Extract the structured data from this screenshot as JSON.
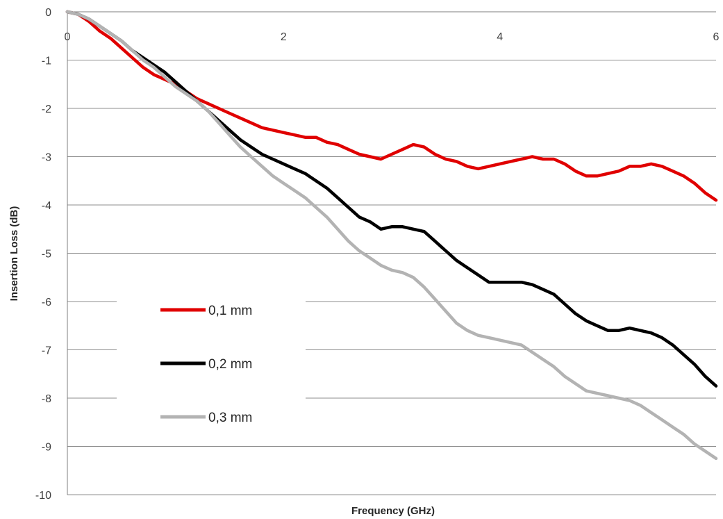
{
  "chart_data": {
    "type": "line",
    "title": "",
    "xlabel": "Frequency (GHz)",
    "ylabel": "Insertion Loss (dB)",
    "xlim": [
      0,
      6
    ],
    "ylim": [
      -10,
      0
    ],
    "x_ticks": [
      0,
      2,
      4,
      6
    ],
    "y_ticks": [
      0,
      -1,
      -2,
      -3,
      -4,
      -5,
      -6,
      -7,
      -8,
      -9,
      -10
    ],
    "grid": "horizontal",
    "legend_position": "lower-left inside plot",
    "series": [
      {
        "name": "0,1 mm",
        "color": "#e00000",
        "points": [
          [
            0.0,
            0.0
          ],
          [
            0.1,
            -0.05
          ],
          [
            0.2,
            -0.2
          ],
          [
            0.3,
            -0.4
          ],
          [
            0.4,
            -0.55
          ],
          [
            0.5,
            -0.75
          ],
          [
            0.6,
            -0.95
          ],
          [
            0.7,
            -1.15
          ],
          [
            0.8,
            -1.3
          ],
          [
            0.9,
            -1.4
          ],
          [
            1.0,
            -1.5
          ],
          [
            1.1,
            -1.65
          ],
          [
            1.2,
            -1.8
          ],
          [
            1.3,
            -1.9
          ],
          [
            1.4,
            -2.0
          ],
          [
            1.5,
            -2.1
          ],
          [
            1.6,
            -2.2
          ],
          [
            1.7,
            -2.3
          ],
          [
            1.8,
            -2.4
          ],
          [
            1.9,
            -2.45
          ],
          [
            2.0,
            -2.5
          ],
          [
            2.1,
            -2.55
          ],
          [
            2.2,
            -2.6
          ],
          [
            2.3,
            -2.6
          ],
          [
            2.4,
            -2.7
          ],
          [
            2.5,
            -2.75
          ],
          [
            2.6,
            -2.85
          ],
          [
            2.7,
            -2.95
          ],
          [
            2.8,
            -3.0
          ],
          [
            2.9,
            -3.05
          ],
          [
            3.0,
            -2.95
          ],
          [
            3.1,
            -2.85
          ],
          [
            3.2,
            -2.75
          ],
          [
            3.3,
            -2.8
          ],
          [
            3.4,
            -2.95
          ],
          [
            3.5,
            -3.05
          ],
          [
            3.6,
            -3.1
          ],
          [
            3.7,
            -3.2
          ],
          [
            3.8,
            -3.25
          ],
          [
            3.9,
            -3.2
          ],
          [
            4.0,
            -3.15
          ],
          [
            4.1,
            -3.1
          ],
          [
            4.2,
            -3.05
          ],
          [
            4.3,
            -3.0
          ],
          [
            4.4,
            -3.05
          ],
          [
            4.5,
            -3.05
          ],
          [
            4.6,
            -3.15
          ],
          [
            4.7,
            -3.3
          ],
          [
            4.8,
            -3.4
          ],
          [
            4.9,
            -3.4
          ],
          [
            5.0,
            -3.35
          ],
          [
            5.1,
            -3.3
          ],
          [
            5.2,
            -3.2
          ],
          [
            5.3,
            -3.2
          ],
          [
            5.4,
            -3.15
          ],
          [
            5.5,
            -3.2
          ],
          [
            5.6,
            -3.3
          ],
          [
            5.7,
            -3.4
          ],
          [
            5.8,
            -3.55
          ],
          [
            5.9,
            -3.75
          ],
          [
            6.0,
            -3.9
          ]
        ]
      },
      {
        "name": "0,2 mm",
        "color": "#000000",
        "points": [
          [
            0.0,
            0.0
          ],
          [
            0.1,
            -0.05
          ],
          [
            0.2,
            -0.15
          ],
          [
            0.3,
            -0.3
          ],
          [
            0.4,
            -0.45
          ],
          [
            0.5,
            -0.6
          ],
          [
            0.6,
            -0.8
          ],
          [
            0.7,
            -0.95
          ],
          [
            0.8,
            -1.1
          ],
          [
            0.9,
            -1.25
          ],
          [
            1.0,
            -1.45
          ],
          [
            1.1,
            -1.65
          ],
          [
            1.2,
            -1.85
          ],
          [
            1.3,
            -2.05
          ],
          [
            1.4,
            -2.25
          ],
          [
            1.5,
            -2.45
          ],
          [
            1.6,
            -2.65
          ],
          [
            1.7,
            -2.8
          ],
          [
            1.8,
            -2.95
          ],
          [
            1.9,
            -3.05
          ],
          [
            2.0,
            -3.15
          ],
          [
            2.1,
            -3.25
          ],
          [
            2.2,
            -3.35
          ],
          [
            2.3,
            -3.5
          ],
          [
            2.4,
            -3.65
          ],
          [
            2.5,
            -3.85
          ],
          [
            2.6,
            -4.05
          ],
          [
            2.7,
            -4.25
          ],
          [
            2.8,
            -4.35
          ],
          [
            2.9,
            -4.5
          ],
          [
            3.0,
            -4.45
          ],
          [
            3.1,
            -4.45
          ],
          [
            3.2,
            -4.5
          ],
          [
            3.3,
            -4.55
          ],
          [
            3.4,
            -4.75
          ],
          [
            3.5,
            -4.95
          ],
          [
            3.6,
            -5.15
          ],
          [
            3.7,
            -5.3
          ],
          [
            3.8,
            -5.45
          ],
          [
            3.9,
            -5.6
          ],
          [
            4.0,
            -5.6
          ],
          [
            4.1,
            -5.6
          ],
          [
            4.2,
            -5.6
          ],
          [
            4.3,
            -5.65
          ],
          [
            4.4,
            -5.75
          ],
          [
            4.5,
            -5.85
          ],
          [
            4.6,
            -6.05
          ],
          [
            4.7,
            -6.25
          ],
          [
            4.8,
            -6.4
          ],
          [
            4.9,
            -6.5
          ],
          [
            5.0,
            -6.6
          ],
          [
            5.1,
            -6.6
          ],
          [
            5.2,
            -6.55
          ],
          [
            5.3,
            -6.6
          ],
          [
            5.4,
            -6.65
          ],
          [
            5.5,
            -6.75
          ],
          [
            5.6,
            -6.9
          ],
          [
            5.7,
            -7.1
          ],
          [
            5.8,
            -7.3
          ],
          [
            5.9,
            -7.55
          ],
          [
            6.0,
            -7.75
          ]
        ]
      },
      {
        "name": "0,3 mm",
        "color": "#b3b3b3",
        "points": [
          [
            0.0,
            0.0
          ],
          [
            0.1,
            -0.05
          ],
          [
            0.2,
            -0.15
          ],
          [
            0.3,
            -0.3
          ],
          [
            0.4,
            -0.45
          ],
          [
            0.5,
            -0.6
          ],
          [
            0.6,
            -0.8
          ],
          [
            0.7,
            -1.0
          ],
          [
            0.8,
            -1.15
          ],
          [
            0.9,
            -1.35
          ],
          [
            1.0,
            -1.55
          ],
          [
            1.1,
            -1.7
          ],
          [
            1.2,
            -1.85
          ],
          [
            1.3,
            -2.05
          ],
          [
            1.4,
            -2.3
          ],
          [
            1.5,
            -2.55
          ],
          [
            1.6,
            -2.8
          ],
          [
            1.7,
            -3.0
          ],
          [
            1.8,
            -3.2
          ],
          [
            1.9,
            -3.4
          ],
          [
            2.0,
            -3.55
          ],
          [
            2.1,
            -3.7
          ],
          [
            2.2,
            -3.85
          ],
          [
            2.3,
            -4.05
          ],
          [
            2.4,
            -4.25
          ],
          [
            2.5,
            -4.5
          ],
          [
            2.6,
            -4.75
          ],
          [
            2.7,
            -4.95
          ],
          [
            2.8,
            -5.1
          ],
          [
            2.9,
            -5.25
          ],
          [
            3.0,
            -5.35
          ],
          [
            3.1,
            -5.4
          ],
          [
            3.2,
            -5.5
          ],
          [
            3.3,
            -5.7
          ],
          [
            3.4,
            -5.95
          ],
          [
            3.5,
            -6.2
          ],
          [
            3.6,
            -6.45
          ],
          [
            3.7,
            -6.6
          ],
          [
            3.8,
            -6.7
          ],
          [
            3.9,
            -6.75
          ],
          [
            4.0,
            -6.8
          ],
          [
            4.1,
            -6.85
          ],
          [
            4.2,
            -6.9
          ],
          [
            4.3,
            -7.05
          ],
          [
            4.4,
            -7.2
          ],
          [
            4.5,
            -7.35
          ],
          [
            4.6,
            -7.55
          ],
          [
            4.7,
            -7.7
          ],
          [
            4.8,
            -7.85
          ],
          [
            4.9,
            -7.9
          ],
          [
            5.0,
            -7.95
          ],
          [
            5.1,
            -8.0
          ],
          [
            5.2,
            -8.05
          ],
          [
            5.3,
            -8.15
          ],
          [
            5.4,
            -8.3
          ],
          [
            5.5,
            -8.45
          ],
          [
            5.6,
            -8.6
          ],
          [
            5.7,
            -8.75
          ],
          [
            5.8,
            -8.95
          ],
          [
            5.9,
            -9.1
          ],
          [
            6.0,
            -9.25
          ]
        ]
      }
    ]
  }
}
